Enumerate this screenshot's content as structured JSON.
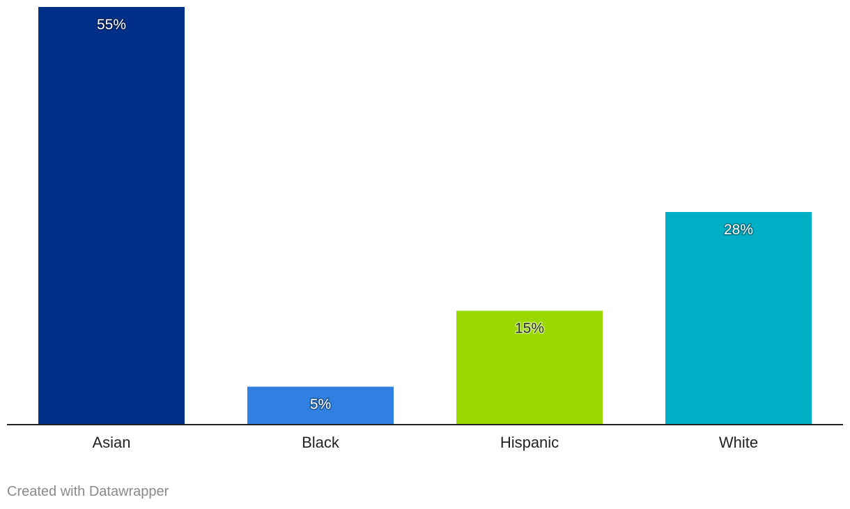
{
  "chart_data": {
    "type": "bar",
    "categories": [
      "Asian",
      "Black",
      "Hispanic",
      "White"
    ],
    "values": [
      55,
      5,
      15,
      28
    ],
    "value_labels": [
      "55%",
      "5%",
      "15%",
      "28%"
    ],
    "colors": [
      "#002f87",
      "#2f80e0",
      "#99d800",
      "#00aec6"
    ],
    "label_colors": [
      "#ffffff",
      "#ffffff",
      "#333333",
      "#ffffff"
    ],
    "ylim": [
      0,
      55
    ],
    "grid": false,
    "title": "",
    "xlabel": "",
    "ylabel": ""
  },
  "footer": {
    "credit": "Created with Datawrapper"
  }
}
